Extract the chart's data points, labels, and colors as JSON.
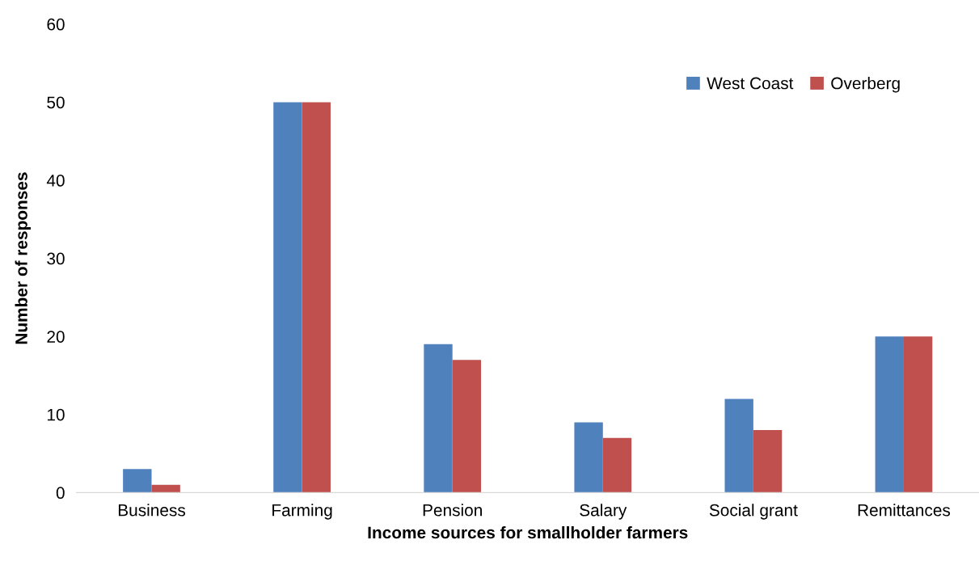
{
  "chart_data": {
    "type": "bar",
    "xlabel": "Income sources for smallholder farmers",
    "ylabel": "Number of responses",
    "categories": [
      "Business",
      "Farming",
      "Pension",
      "Salary",
      "Social grant",
      "Remittances"
    ],
    "series": [
      {
        "name": "West Coast",
        "color": "#4f81bd",
        "values": [
          3,
          50,
          19,
          9,
          12,
          20
        ]
      },
      {
        "name": "Overberg",
        "color": "#c0504d",
        "values": [
          1,
          50,
          17,
          7,
          8,
          20
        ]
      }
    ],
    "ylim": [
      0,
      60
    ],
    "yticks": [
      0,
      10,
      20,
      30,
      40,
      50,
      60
    ],
    "grid": false,
    "legend": "top right"
  }
}
